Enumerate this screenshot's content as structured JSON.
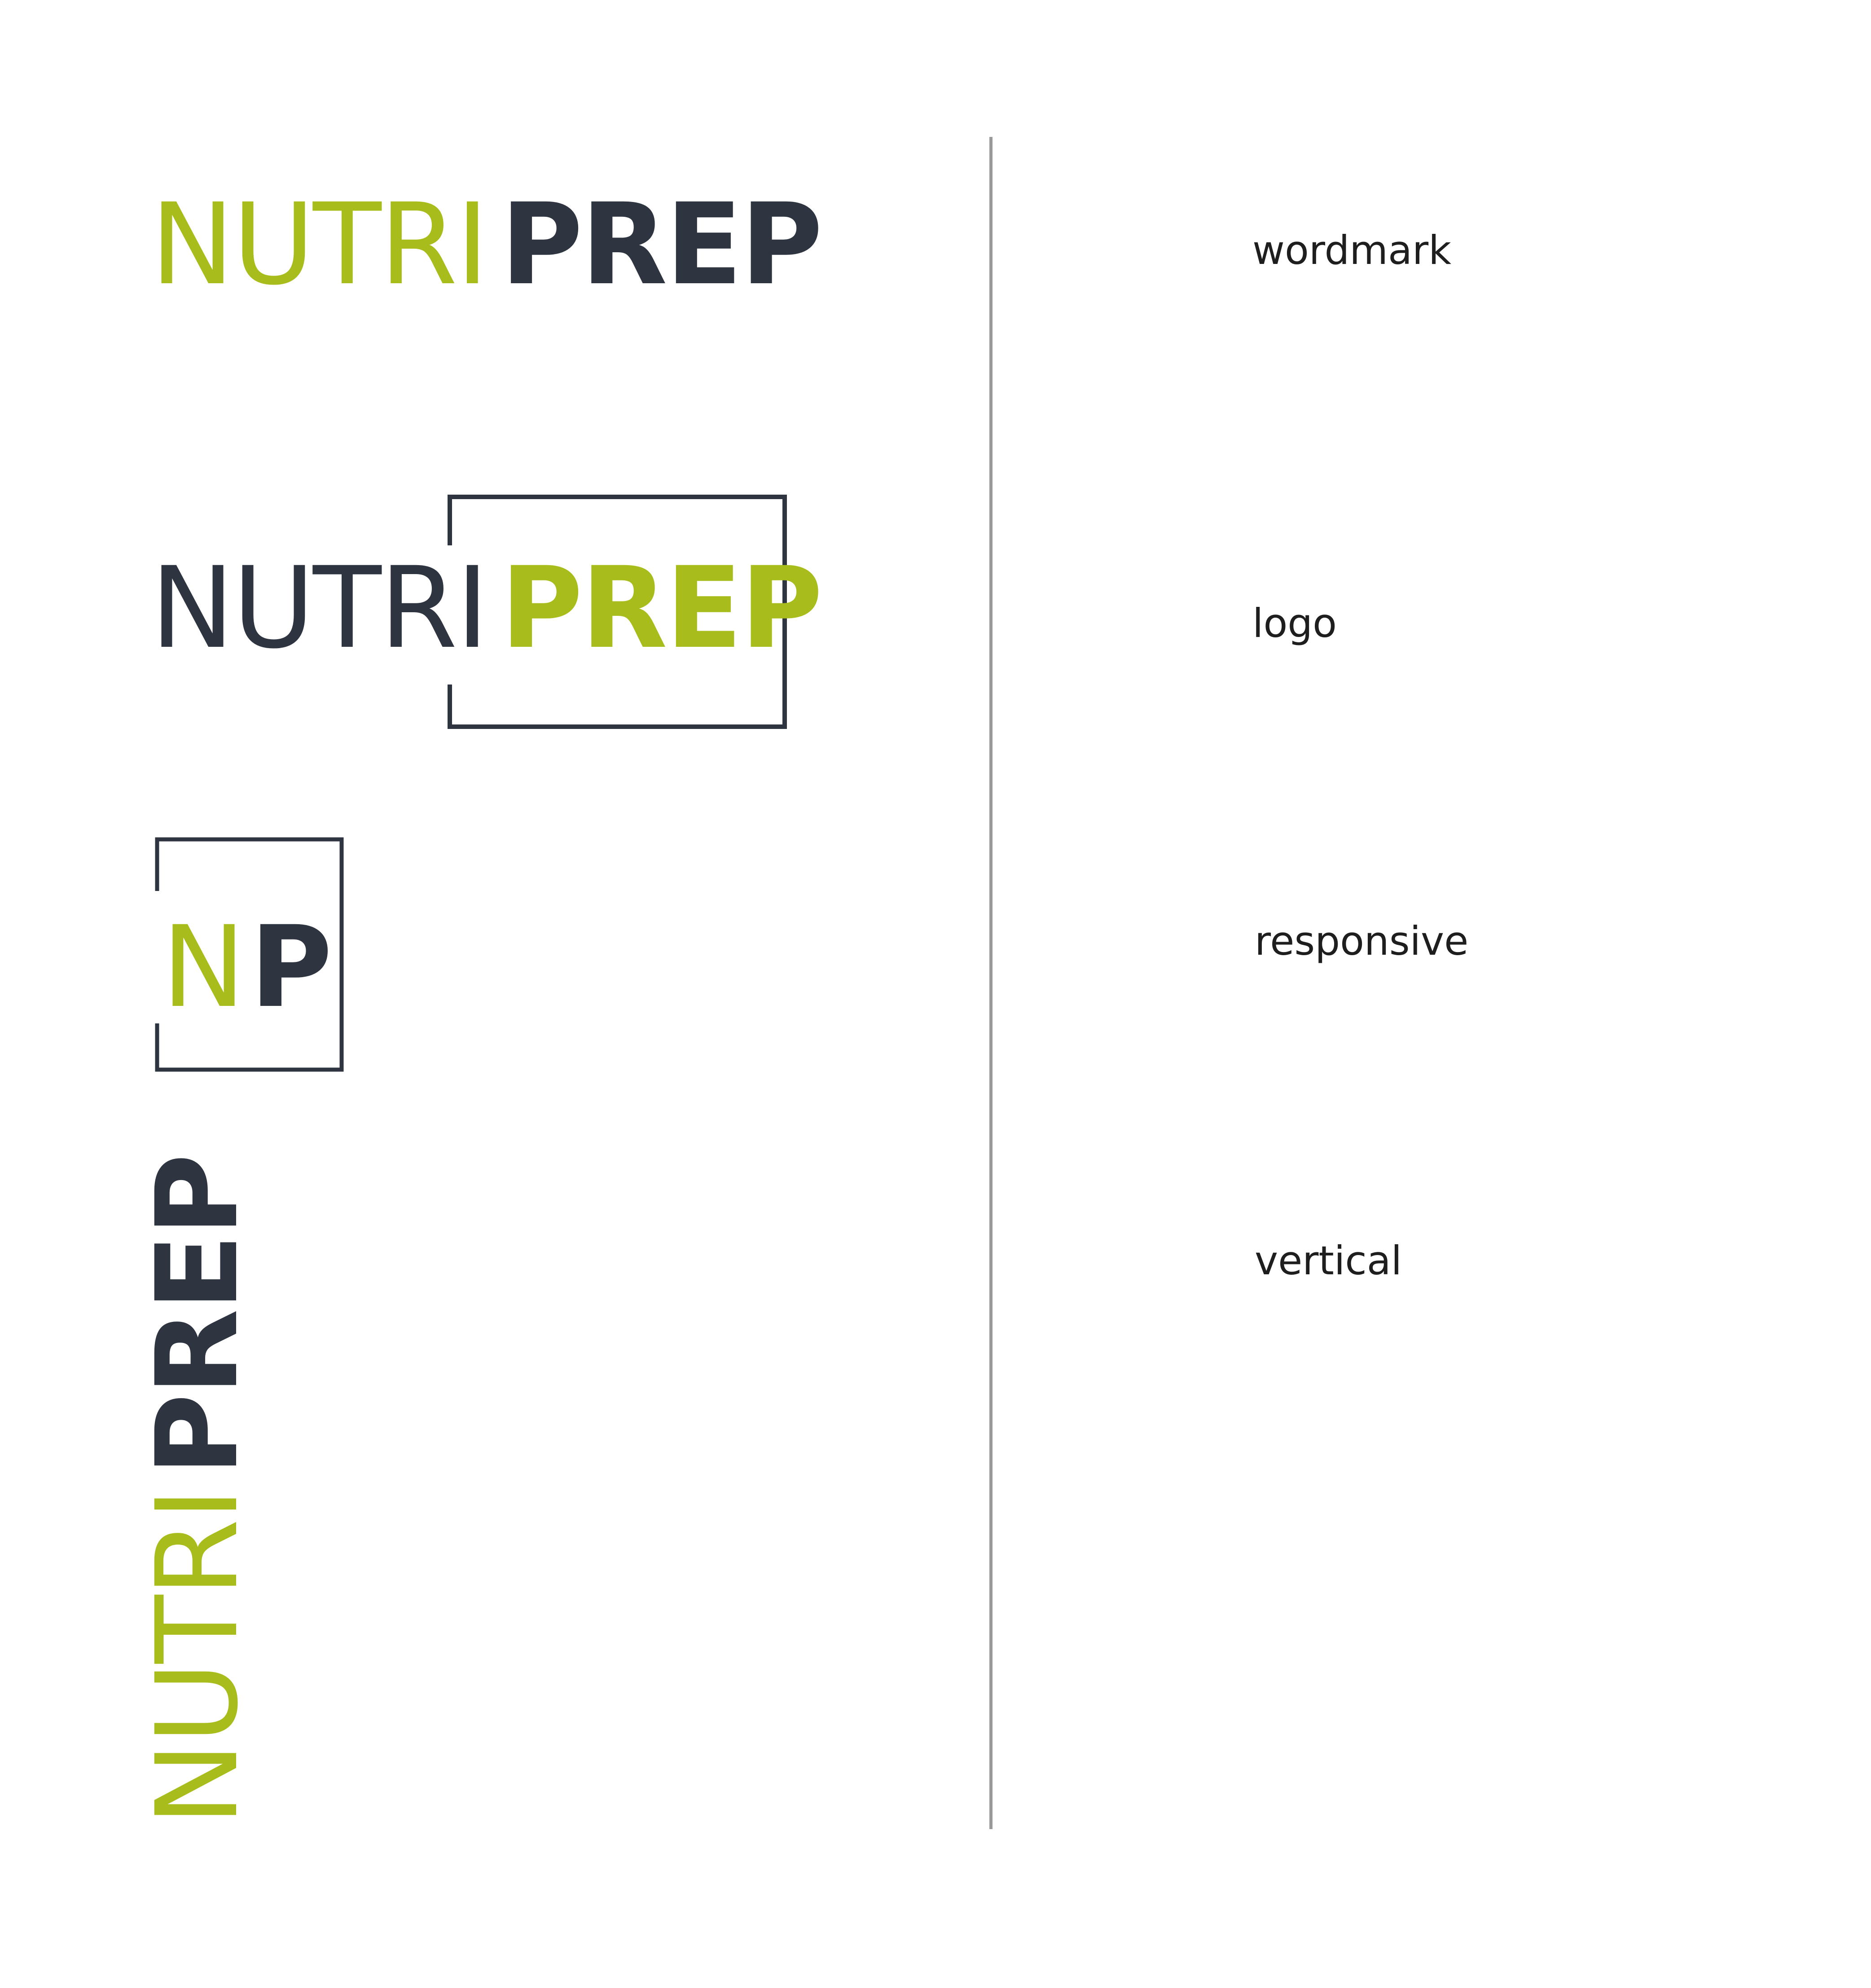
{
  "colors": {
    "green": "#a8bd1c",
    "navy": "#2e3440",
    "divider": "#9a9a9a",
    "label": "#1e1e1e"
  },
  "wordmark": {
    "part1": "NUTRI",
    "part2": "PREP"
  },
  "logo": {
    "part1": "NUTRI",
    "part2": "PREP"
  },
  "responsive": {
    "part1": "N",
    "part2": "P"
  },
  "vertical": {
    "part1": "NUTRI",
    "part2": "PREP"
  },
  "labels": {
    "wordmark": "wordmark",
    "logo": "logo",
    "responsive": "responsive",
    "vertical": "vertical"
  }
}
